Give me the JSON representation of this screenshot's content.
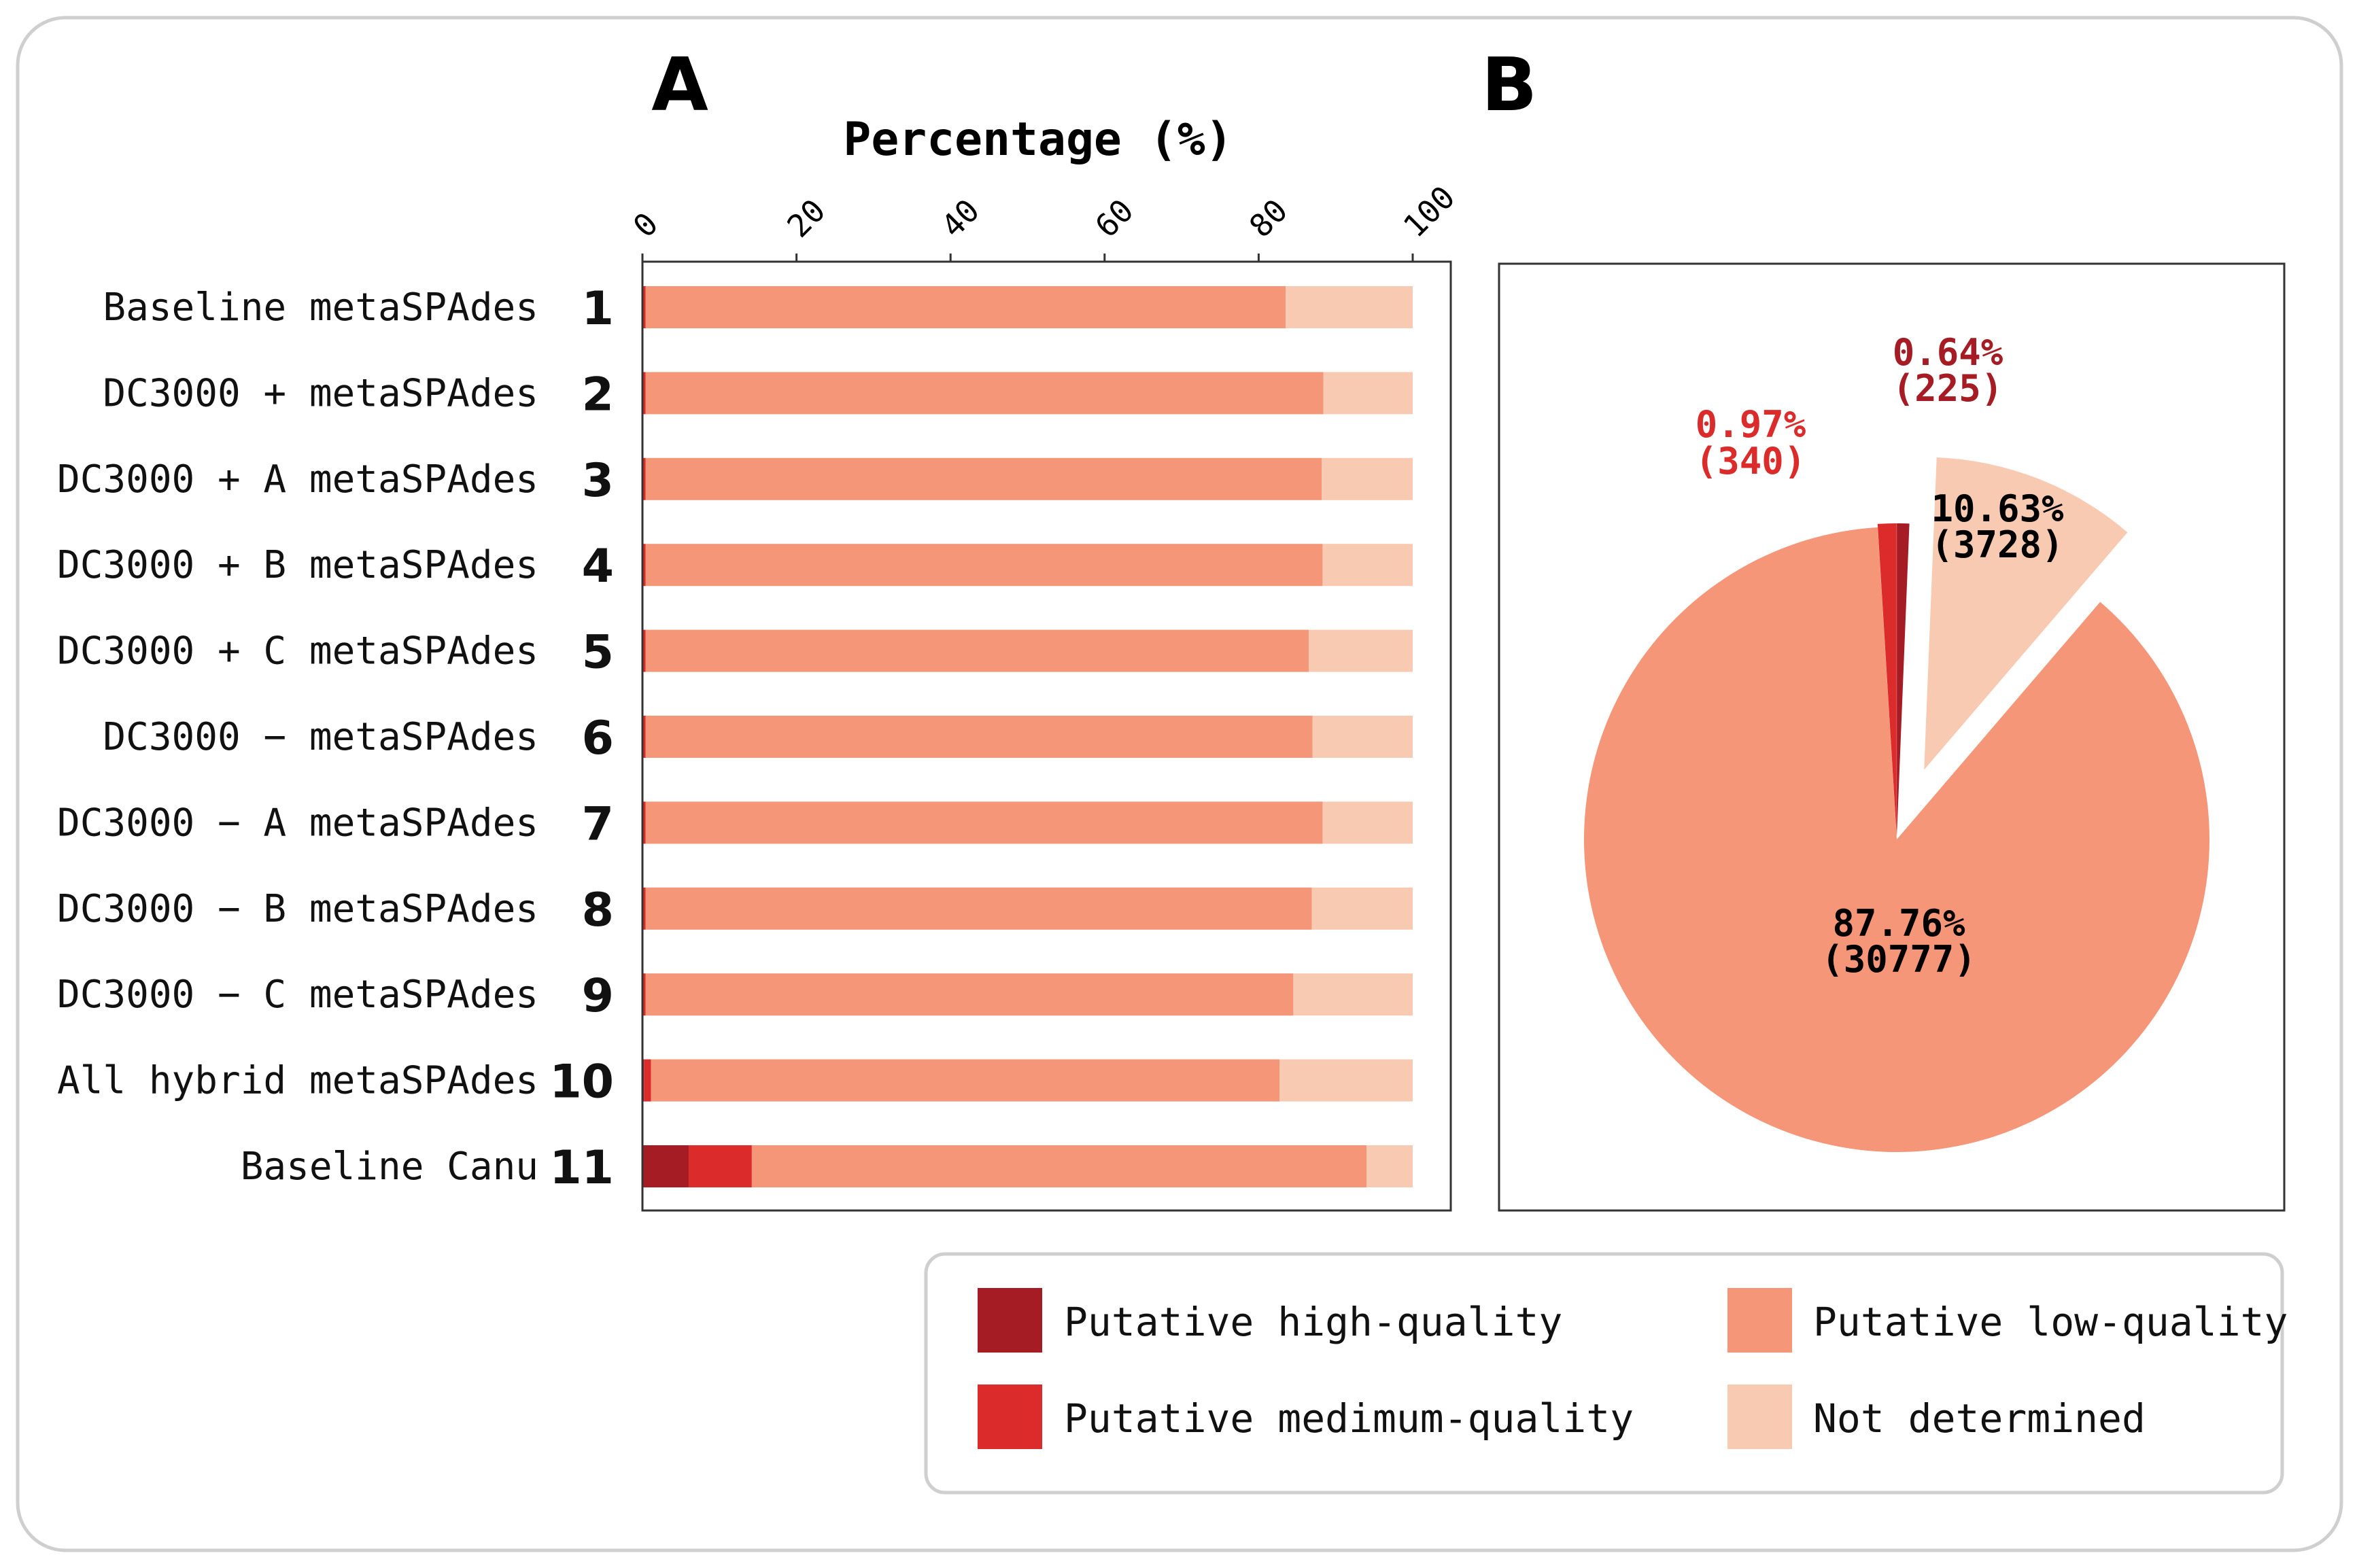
{
  "panel_labels": {
    "a": "A",
    "b": "B"
  },
  "colors": {
    "high": "#a51c24",
    "medium": "#dc2b2b",
    "low": "#f49677",
    "nd": "#f9cab2"
  },
  "chart_data": [
    {
      "type": "bar",
      "orientation": "horizontal",
      "stacked": true,
      "title": "Percentage (%)",
      "xlabel": "Percentage (%)",
      "ylabel": "",
      "xlim": [
        0,
        100
      ],
      "xticks": [
        "0",
        "20",
        "40",
        "60",
        "80",
        "100"
      ],
      "categories": [
        "Baseline metaSPAdes",
        "DC3000 + metaSPAdes",
        "DC3000 + A metaSPAdes",
        "DC3000 + B metaSPAdes",
        "DC3000 + C metaSPAdes",
        "DC3000 − metaSPAdes",
        "DC3000 − A metaSPAdes",
        "DC3000 − B metaSPAdes",
        "DC3000 − C metaSPAdes",
        "All hybrid metaSPAdes",
        "Baseline Canu"
      ],
      "row_numbers": [
        "1",
        "2",
        "3",
        "4",
        "5",
        "6",
        "7",
        "8",
        "9",
        "10",
        "11"
      ],
      "series": [
        {
          "name": "Putative high-quality",
          "key": "high",
          "values": [
            0.1,
            0.1,
            0.1,
            0.1,
            0.1,
            0.1,
            0.1,
            0.1,
            0.1,
            0.2,
            6.0
          ]
        },
        {
          "name": "Putative medimum-quality",
          "key": "medium",
          "values": [
            0.3,
            0.3,
            0.3,
            0.3,
            0.3,
            0.3,
            0.3,
            0.3,
            0.3,
            0.9,
            8.2
          ]
        },
        {
          "name": "Putative low-quality",
          "key": "low",
          "values": [
            83.1,
            88.0,
            87.8,
            87.9,
            86.1,
            86.6,
            87.9,
            86.5,
            84.1,
            81.6,
            79.8
          ]
        },
        {
          "name": "Not determined",
          "key": "nd",
          "values": [
            16.5,
            11.6,
            11.8,
            11.7,
            13.5,
            13.0,
            11.7,
            13.1,
            15.5,
            17.3,
            6.0
          ]
        }
      ]
    },
    {
      "type": "pie",
      "slices": [
        {
          "name": "Putative high-quality",
          "key": "high",
          "value": 0.64,
          "count": 225,
          "pct_label": "0.64%",
          "count_label": "(225)"
        },
        {
          "name": "Not determined",
          "key": "nd",
          "value": 10.63,
          "count": 3728,
          "pct_label": "10.63%",
          "count_label": "(3728)"
        },
        {
          "name": "Putative low-quality",
          "key": "low",
          "value": 87.76,
          "count": 30777,
          "pct_label": "87.76%",
          "count_label": "(30777)"
        },
        {
          "name": "Putative medimum-quality",
          "key": "medium",
          "value": 0.97,
          "count": 340,
          "pct_label": "0.97%",
          "count_label": "(340)"
        }
      ]
    }
  ],
  "legend": {
    "items": [
      {
        "key": "high",
        "label": "Putative high-quality"
      },
      {
        "key": "medium",
        "label": "Putative medimum-quality"
      },
      {
        "key": "low",
        "label": "Putative low-quality"
      },
      {
        "key": "nd",
        "label": "Not determined"
      }
    ]
  }
}
